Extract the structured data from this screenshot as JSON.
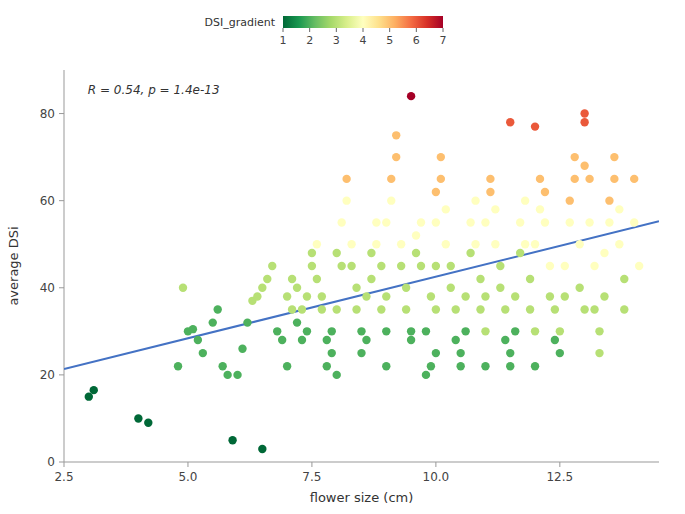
{
  "chart_data": {
    "type": "scatter",
    "xlabel": "flower size (cm)",
    "ylabel": "average DSi",
    "annotation": "R = 0.54, p = 1.4e-13",
    "xlim": [
      2.5,
      14.5
    ],
    "ylim": [
      0,
      90
    ],
    "xticks": [
      2.5,
      {
        "value": 5.0,
        "label": "5.0"
      },
      7.5,
      {
        "value": 10.0,
        "label": "10.0"
      },
      12.5
    ],
    "yticks": [
      0,
      20,
      40,
      60,
      80
    ],
    "series": [
      {
        "type": "scatter",
        "x": [
          3.0,
          3.1,
          4.0,
          4.2,
          4.8,
          4.9,
          5.0,
          5.1,
          5.2,
          5.3,
          5.5,
          5.6,
          5.7,
          5.8,
          5.9,
          6.0,
          6.1,
          6.2,
          6.3,
          6.4,
          6.5,
          6.6,
          6.7,
          6.8,
          6.9,
          6.5,
          7.0,
          7.0,
          7.1,
          7.1,
          7.2,
          7.2,
          7.3,
          7.3,
          7.4,
          7.4,
          7.5,
          7.5,
          7.6,
          7.6,
          7.7,
          7.7,
          7.8,
          7.8,
          7.9,
          7.9,
          8.0,
          8.0,
          8.0,
          8.1,
          8.1,
          8.2,
          8.2,
          8.3,
          8.3,
          8.4,
          8.4,
          8.5,
          8.5,
          8.6,
          8.6,
          8.7,
          8.7,
          8.8,
          8.8,
          8.9,
          8.9,
          9.0,
          9.0,
          9.0,
          9.0,
          9.1,
          9.1,
          9.2,
          9.2,
          9.3,
          9.3,
          9.4,
          9.4,
          9.5,
          9.5,
          9.6,
          9.6,
          9.7,
          9.7,
          9.8,
          9.8,
          9.9,
          9.9,
          9.5,
          10.0,
          10.0,
          10.0,
          10.0,
          10.0,
          10.1,
          10.1,
          10.2,
          10.2,
          10.3,
          10.3,
          10.4,
          10.4,
          10.5,
          10.5,
          10.6,
          10.6,
          10.7,
          10.7,
          10.8,
          10.8,
          10.9,
          10.9,
          11.0,
          11.0,
          11.0,
          11.0,
          11.1,
          11.1,
          11.2,
          11.2,
          11.3,
          11.3,
          11.4,
          11.4,
          11.5,
          11.5,
          11.5,
          11.6,
          11.6,
          11.7,
          11.7,
          11.8,
          11.8,
          11.9,
          11.9,
          12.0,
          12.0,
          12.0,
          12.0,
          12.1,
          12.1,
          12.2,
          12.2,
          12.3,
          12.3,
          12.4,
          12.4,
          12.5,
          12.5,
          12.6,
          12.6,
          12.7,
          12.7,
          12.8,
          12.8,
          12.9,
          12.9,
          13.0,
          13.0,
          13.0,
          13.0,
          13.1,
          13.1,
          13.2,
          13.2,
          13.3,
          13.3,
          13.4,
          13.4,
          13.5,
          13.5,
          13.6,
          13.6,
          13.7,
          13.7,
          13.8,
          13.8,
          14.0,
          14.0,
          14.1
        ],
        "values": [
          15.0,
          16.5,
          10.0,
          9.0,
          22.0,
          40.0,
          30.0,
          30.5,
          28.0,
          25.0,
          32.0,
          35.0,
          22.0,
          20.0,
          5.0,
          20.0,
          26.0,
          32.0,
          37.0,
          38.0,
          40.0,
          42.0,
          45.0,
          30.0,
          28.0,
          3.0,
          22.0,
          38.0,
          35.0,
          42.0,
          40.0,
          32.0,
          28.0,
          35.0,
          30.0,
          38.0,
          45.0,
          48.0,
          50.0,
          42.0,
          38.0,
          35.0,
          28.0,
          22.0,
          25.0,
          30.0,
          20.0,
          35.0,
          48.0,
          45.0,
          55.0,
          60.0,
          65.0,
          50.0,
          45.0,
          40.0,
          35.0,
          30.0,
          25.0,
          28.0,
          38.0,
          42.0,
          48.0,
          55.0,
          50.0,
          45.0,
          35.0,
          30.0,
          22.0,
          38.0,
          55.0,
          60.0,
          65.0,
          70.0,
          75.0,
          50.0,
          45.0,
          40.0,
          35.0,
          30.0,
          28.0,
          48.0,
          52.0,
          55.0,
          45.0,
          20.0,
          30.0,
          22.0,
          38.0,
          84.0,
          25.0,
          35.0,
          45.0,
          55.0,
          62.0,
          65.0,
          70.0,
          58.0,
          50.0,
          45.0,
          40.0,
          35.0,
          28.0,
          25.0,
          22.0,
          30.0,
          38.0,
          48.0,
          55.0,
          60.0,
          50.0,
          42.0,
          35.0,
          30.0,
          22.0,
          38.0,
          55.0,
          65.0,
          62.0,
          58.0,
          50.0,
          45.0,
          40.0,
          35.0,
          28.0,
          25.0,
          22.0,
          78.0,
          30.0,
          38.0,
          48.0,
          55.0,
          60.0,
          50.0,
          42.0,
          35.0,
          30.0,
          22.0,
          50.0,
          77.0,
          58.0,
          65.0,
          62.0,
          55.0,
          45.0,
          38.0,
          35.0,
          28.0,
          25.0,
          30.0,
          38.0,
          45.0,
          55.0,
          60.0,
          70.0,
          65.0,
          50.0,
          40.0,
          35.0,
          68.0,
          80.0,
          78.0,
          65.0,
          55.0,
          45.0,
          35.0,
          25.0,
          30.0,
          38.0,
          48.0,
          55.0,
          60.0,
          65.0,
          70.0,
          58.0,
          50.0,
          35.0,
          42.0,
          65.0,
          55.0,
          45.0
        ],
        "dsi": [
          1,
          1,
          1,
          1,
          2,
          3,
          2,
          2,
          2,
          2,
          2,
          2,
          2,
          2,
          1,
          2,
          2,
          2,
          3,
          3,
          3,
          3,
          3,
          2,
          2,
          1,
          2,
          3,
          3,
          3,
          3,
          2,
          2,
          3,
          2,
          3,
          3,
          3,
          4,
          3,
          3,
          3,
          2,
          2,
          2,
          2,
          2,
          3,
          3,
          3,
          4,
          4,
          5,
          4,
          3,
          3,
          3,
          2,
          2,
          2,
          3,
          3,
          3,
          4,
          4,
          3,
          3,
          2,
          2,
          3,
          4,
          4,
          5,
          5,
          5,
          4,
          3,
          3,
          3,
          2,
          2,
          3,
          4,
          4,
          3,
          2,
          2,
          2,
          3,
          7,
          2,
          3,
          3,
          4,
          5,
          5,
          5,
          4,
          4,
          3,
          3,
          3,
          2,
          2,
          2,
          2,
          3,
          3,
          4,
          4,
          4,
          3,
          3,
          3,
          2,
          3,
          4,
          5,
          5,
          4,
          4,
          3,
          3,
          3,
          2,
          2,
          2,
          6,
          2,
          3,
          3,
          4,
          4,
          4,
          3,
          3,
          3,
          2,
          4,
          6,
          4,
          5,
          5,
          4,
          4,
          3,
          3,
          2,
          2,
          3,
          3,
          4,
          4,
          5,
          5,
          5,
          4,
          3,
          3,
          5,
          6,
          6,
          5,
          4,
          4,
          3,
          3,
          3,
          3,
          4,
          4,
          5,
          5,
          5,
          4,
          4,
          3,
          3,
          5,
          4,
          4
        ]
      },
      {
        "type": "line",
        "color": "#4472C4",
        "x": [
          2.5,
          14.5
        ],
        "values": [
          21.33,
          55.27
        ]
      }
    ],
    "colorbar": {
      "label": "DSI_gradient",
      "range": [
        1,
        7
      ],
      "ticks": [
        1,
        2,
        3,
        4,
        5,
        6,
        7
      ]
    }
  }
}
